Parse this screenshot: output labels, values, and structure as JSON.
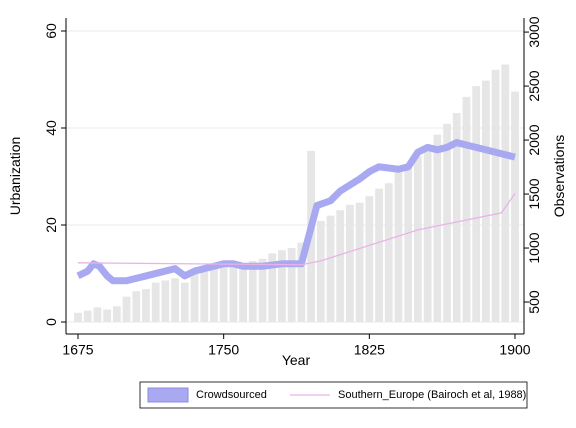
{
  "chart_data": {
    "type": "combo",
    "xlabel": "Year",
    "ylabel": "Urbanization",
    "y2label": "Observations",
    "xlim": [
      1675,
      1900
    ],
    "xticks": [
      1675,
      1750,
      1825,
      1900
    ],
    "ylim": [
      0,
      60
    ],
    "yticks": [
      0,
      20,
      40,
      60
    ],
    "y2lim": [
      315,
      3010
    ],
    "y2ticks": [
      500,
      1000,
      1500,
      2000,
      2500,
      3000
    ],
    "grid": true,
    "legend": "bottom",
    "observations": {
      "axis": "y2",
      "color": "#e6e6e6",
      "x": [
        1675,
        1680,
        1685,
        1690,
        1695,
        1700,
        1705,
        1710,
        1715,
        1720,
        1725,
        1730,
        1735,
        1740,
        1745,
        1750,
        1755,
        1760,
        1765,
        1770,
        1775,
        1780,
        1785,
        1790,
        1795,
        1800,
        1805,
        1810,
        1815,
        1820,
        1825,
        1830,
        1835,
        1840,
        1845,
        1850,
        1855,
        1860,
        1865,
        1870,
        1875,
        1880,
        1885,
        1890,
        1895,
        1900
      ],
      "values": [
        400,
        420,
        450,
        430,
        460,
        550,
        600,
        620,
        680,
        700,
        720,
        680,
        760,
        800,
        840,
        870,
        850,
        860,
        880,
        900,
        950,
        980,
        1000,
        1050,
        1900,
        1250,
        1300,
        1350,
        1400,
        1420,
        1480,
        1550,
        1600,
        1700,
        1750,
        1850,
        1950,
        2050,
        2150,
        2250,
        2400,
        2500,
        2550,
        2650,
        2700,
        2450
      ]
    },
    "series": [
      {
        "name": "Crowdsourced",
        "type": "band",
        "color": "#a9a9f2",
        "x": [
          1675,
          1680,
          1683,
          1686,
          1690,
          1693,
          1700,
          1710,
          1720,
          1725,
          1730,
          1735,
          1745,
          1750,
          1755,
          1760,
          1770,
          1780,
          1790,
          1798,
          1805,
          1810,
          1820,
          1825,
          1830,
          1840,
          1845,
          1850,
          1855,
          1860,
          1865,
          1870,
          1875,
          1880,
          1890,
          1900
        ],
        "values": [
          9.5,
          10.5,
          12,
          11.5,
          9.5,
          8.5,
          8.5,
          9.5,
          10.5,
          11,
          9.5,
          10.5,
          11.5,
          12,
          12,
          11.5,
          11.5,
          12,
          12,
          24,
          25,
          27,
          29.5,
          31,
          32,
          31.5,
          32,
          35,
          36,
          35.5,
          36,
          37,
          36.5,
          36,
          35,
          34
        ]
      },
      {
        "name": "Southern_Europe (Bairoch et al, 1988)",
        "type": "line",
        "color": "#e8b3e8",
        "x": [
          1675,
          1790,
          1800,
          1850,
          1893,
          1900
        ],
        "values": [
          12.2,
          11.8,
          12.6,
          19,
          22.5,
          26.5
        ]
      }
    ]
  }
}
